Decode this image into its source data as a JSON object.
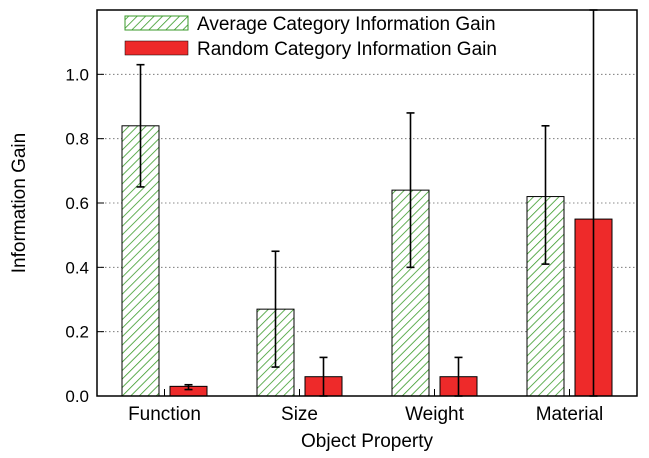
{
  "chart_data": {
    "type": "bar",
    "title": "",
    "xlabel": "Object Property",
    "ylabel": "Information Gain",
    "categories": [
      "Function",
      "Size",
      "Weight",
      "Material"
    ],
    "ylim": [
      0,
      1.2
    ],
    "yticks": [
      "0.0",
      "0.2",
      "0.4",
      "0.6",
      "0.8",
      "1.0"
    ],
    "grid": "horizontal-dotted",
    "legend_position": "top-left",
    "series": [
      {
        "name": "Average Category Information Gain",
        "style": "hatched",
        "color": "#3a9a2a",
        "values": [
          0.84,
          0.27,
          0.64,
          0.62
        ],
        "errors": [
          [
            0.65,
            1.03
          ],
          [
            0.09,
            0.45
          ],
          [
            0.4,
            0.88
          ],
          [
            0.41,
            0.84
          ]
        ]
      },
      {
        "name": "Random Category Information Gain",
        "style": "solid",
        "color": "#ee2a2a",
        "values": [
          0.03,
          0.06,
          0.06,
          0.55
        ],
        "errors": [
          [
            0.02,
            0.035
          ],
          [
            0.0,
            0.12
          ],
          [
            0.0,
            0.12
          ],
          [
            0.0,
            1.2
          ]
        ]
      }
    ]
  }
}
